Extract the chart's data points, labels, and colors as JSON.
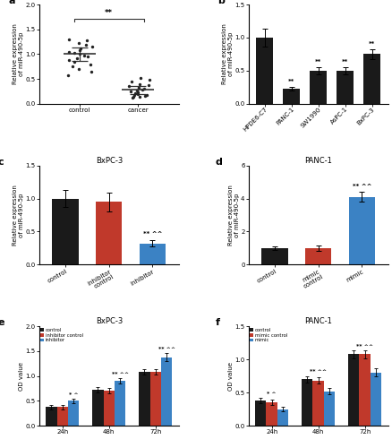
{
  "panel_a": {
    "control_points": [
      1.3,
      1.28,
      1.22,
      1.18,
      1.15,
      1.12,
      1.08,
      1.05,
      1.02,
      1.0,
      0.98,
      0.95,
      0.92,
      0.88,
      0.85,
      0.8,
      0.75,
      0.7,
      0.65,
      0.58
    ],
    "cancer_points": [
      0.52,
      0.48,
      0.44,
      0.4,
      0.37,
      0.35,
      0.33,
      0.3,
      0.28,
      0.27,
      0.25,
      0.24,
      0.22,
      0.2,
      0.18,
      0.17,
      0.16,
      0.15,
      0.14,
      0.12
    ],
    "control_mean": 1.0,
    "cancer_mean": 0.28,
    "ylim": [
      0,
      2.0
    ],
    "yticks": [
      0.0,
      0.5,
      1.0,
      1.5,
      2.0
    ],
    "ylabel": "Relative expression\nof miR-490-5p",
    "xlabel_labels": [
      "control",
      "cancer"
    ],
    "sig_label": "**"
  },
  "panel_b": {
    "categories": [
      "HPDE6-C7",
      "PANC-1",
      "SW1990",
      "AsPC-1",
      "BxPC-3"
    ],
    "values": [
      1.0,
      0.23,
      0.5,
      0.5,
      0.75
    ],
    "errors": [
      0.13,
      0.03,
      0.05,
      0.05,
      0.08
    ],
    "sig_labels": [
      "",
      "**",
      "**",
      "**",
      "**"
    ],
    "ylim": [
      0,
      1.5
    ],
    "yticks": [
      0.0,
      0.5,
      1.0,
      1.5
    ],
    "ylabel": "Relative expression\nof miR-490-5p",
    "bar_color": "#1a1a1a"
  },
  "panel_c": {
    "title": "BxPC-3",
    "categories": [
      "control",
      "inhibitor\ncontrol",
      "inhibitor"
    ],
    "values": [
      1.0,
      0.95,
      0.32
    ],
    "errors": [
      0.13,
      0.14,
      0.05
    ],
    "colors": [
      "#1a1a1a",
      "#c0392b",
      "#3b82c4"
    ],
    "sig_labels": [
      "",
      "",
      "** ^^"
    ],
    "ylim": [
      0,
      1.5
    ],
    "yticks": [
      0.0,
      0.5,
      1.0,
      1.5
    ],
    "ylabel": "Relative expression\nof miR-490-5p"
  },
  "panel_d": {
    "title": "PANC-1",
    "categories": [
      "control",
      "mimic\ncontrol",
      "mimic"
    ],
    "values": [
      1.0,
      1.0,
      4.1
    ],
    "errors": [
      0.13,
      0.15,
      0.3
    ],
    "colors": [
      "#1a1a1a",
      "#c0392b",
      "#3b82c4"
    ],
    "sig_labels": [
      "",
      "",
      "** ^^"
    ],
    "ylim": [
      0,
      6
    ],
    "yticks": [
      0,
      2,
      4,
      6
    ],
    "ylabel": "Relative expression\nof miR-490-5p"
  },
  "panel_e": {
    "title": "BxPC-3",
    "time_points": [
      "24h",
      "48h",
      "72h"
    ],
    "series": {
      "control": [
        0.37,
        0.72,
        1.08
      ],
      "inhibitor control": [
        0.37,
        0.7,
        1.08
      ],
      "inhibitor": [
        0.5,
        0.9,
        1.38
      ]
    },
    "errors": {
      "control": [
        0.04,
        0.05,
        0.06
      ],
      "inhibitor control": [
        0.04,
        0.05,
        0.06
      ],
      "inhibitor": [
        0.05,
        0.06,
        0.08
      ]
    },
    "colors": {
      "control": "#1a1a1a",
      "inhibitor control": "#c0392b",
      "inhibitor": "#3b82c4"
    },
    "sig_labels": [
      "* ^",
      "** ^^",
      "** ^^"
    ],
    "ylim": [
      0,
      2.0
    ],
    "yticks": [
      0.0,
      0.5,
      1.0,
      1.5,
      2.0
    ],
    "ylabel": "OD value"
  },
  "panel_f": {
    "title": "PANC-1",
    "time_points": [
      "24h",
      "48h",
      "72h"
    ],
    "series": {
      "control": [
        0.38,
        0.7,
        1.08
      ],
      "mimic control": [
        0.35,
        0.68,
        1.08
      ],
      "mimic": [
        0.25,
        0.52,
        0.8
      ]
    },
    "errors": {
      "control": [
        0.04,
        0.05,
        0.06
      ],
      "mimic control": [
        0.04,
        0.05,
        0.06
      ],
      "mimic": [
        0.04,
        0.05,
        0.06
      ]
    },
    "colors": {
      "control": "#1a1a1a",
      "mimic control": "#c0392b",
      "mimic": "#3b82c4"
    },
    "sig_labels": [
      "* ^",
      "** ^^",
      "** ^^"
    ],
    "ylim": [
      0,
      1.5
    ],
    "yticks": [
      0.0,
      0.5,
      1.0,
      1.5
    ],
    "ylabel": "OD value"
  }
}
